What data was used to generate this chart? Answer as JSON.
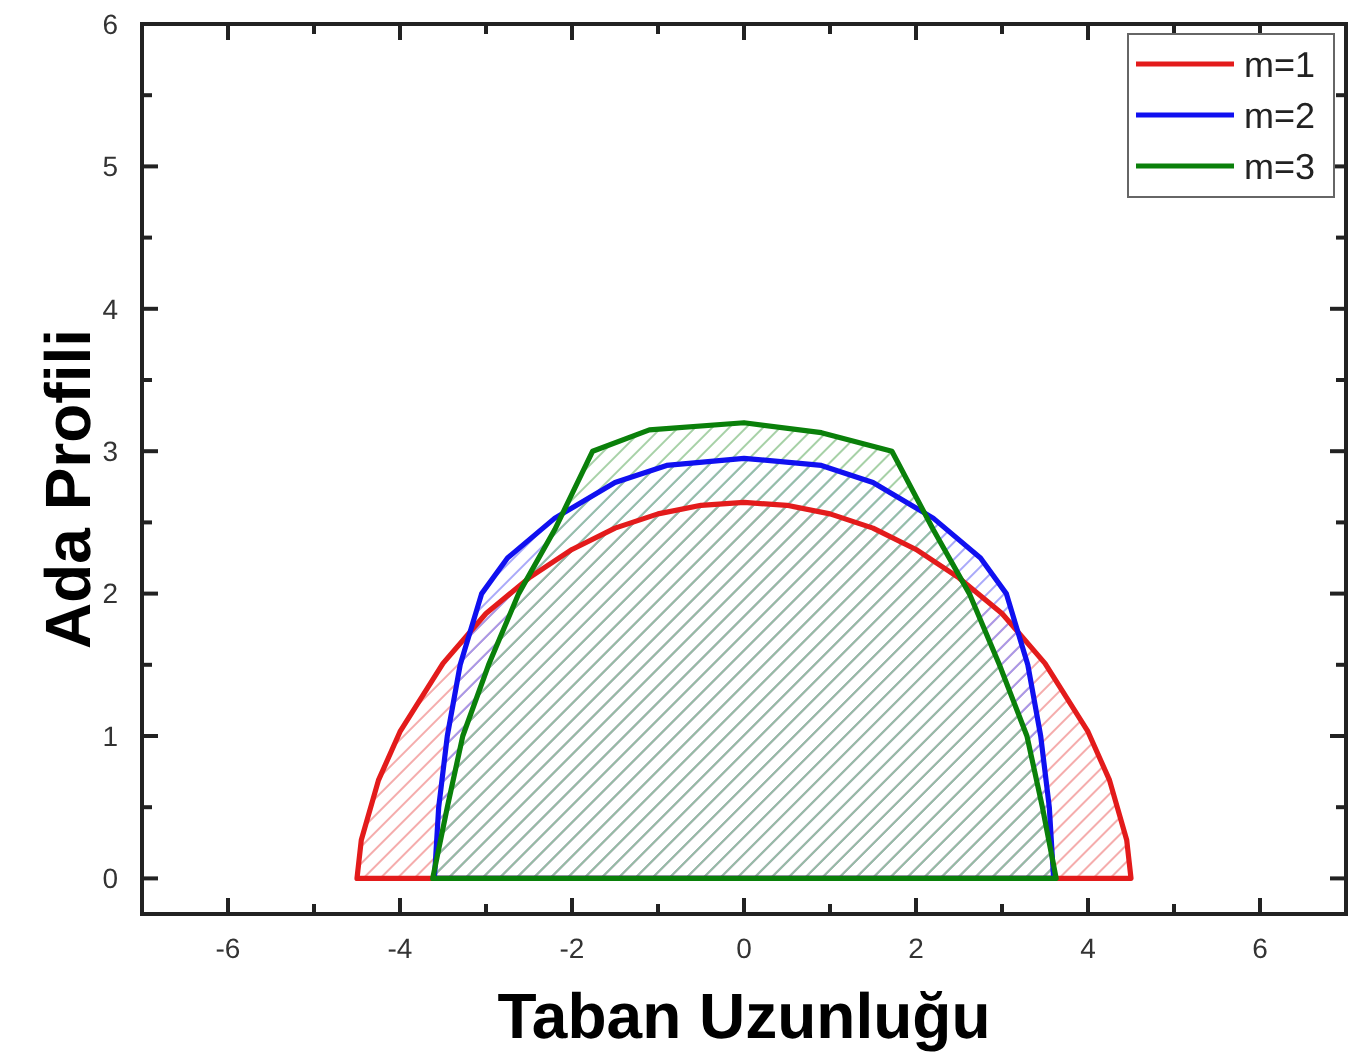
{
  "chart_data": {
    "type": "area",
    "xlabel": "Taban Uzunluğu",
    "ylabel": "Ada Profili",
    "xlim": [
      -7,
      7
    ],
    "ylim": [
      -0.25,
      6
    ],
    "xticks": [
      -6,
      {
        "value": -5,
        "label": null
      },
      -4,
      {
        "value": -3,
        "label": null
      },
      -2,
      {
        "value": -1,
        "label": null
      },
      0,
      {
        "value": 1,
        "label": null
      },
      2,
      {
        "value": 3,
        "label": null
      },
      4,
      {
        "value": 5,
        "label": null
      },
      6
    ],
    "yticks": [
      0,
      {
        "value": 0.5,
        "label": null
      },
      1,
      {
        "value": 1.5,
        "label": null
      },
      2,
      {
        "value": 2.5,
        "label": null
      },
      3,
      {
        "value": 3.5,
        "label": null
      },
      4,
      {
        "value": 4.5,
        "label": null
      },
      5,
      {
        "value": 5.5,
        "label": null
      },
      6
    ],
    "legend": "top right",
    "series": [
      {
        "name": "m=1",
        "color": "#e31b1b",
        "x": [
          -4.5,
          -4.45,
          -4.25,
          -4,
          -3.5,
          -3,
          -2.5,
          -2,
          -1.5,
          -1,
          -0.5,
          0,
          0.5,
          1,
          1.5,
          2,
          2.5,
          3,
          3.5,
          4,
          4.25,
          4.45,
          4.5
        ],
        "values": [
          0,
          0.27,
          0.69,
          1.03,
          1.51,
          1.86,
          2.11,
          2.31,
          2.46,
          2.56,
          2.62,
          2.64,
          2.62,
          2.56,
          2.46,
          2.31,
          2.11,
          1.86,
          1.51,
          1.03,
          0.69,
          0.27,
          0
        ]
      },
      {
        "name": "m=2",
        "color": "#1010f0",
        "x": [
          -3.6,
          -3.55,
          -3.45,
          -3.3,
          -3.05,
          -2.75,
          -2.2,
          -1.5,
          -0.9,
          0,
          0.9,
          1.5,
          2.2,
          2.75,
          3.05,
          3.3,
          3.45,
          3.55,
          3.6
        ],
        "values": [
          0,
          0.5,
          1,
          1.5,
          2,
          2.25,
          2.53,
          2.78,
          2.9,
          2.95,
          2.9,
          2.78,
          2.53,
          2.25,
          2,
          1.5,
          1,
          0.5,
          0
        ]
      },
      {
        "name": "m=3",
        "color": "#0a800a",
        "x": [
          -3.62,
          -3.45,
          -3.27,
          -2.97,
          -2.62,
          -2.2,
          -1.76,
          -1.1,
          0,
          0.9,
          1.72,
          2.2,
          2.62,
          2.97,
          3.29,
          3.47,
          3.63
        ],
        "values": [
          0,
          0.5,
          1,
          1.5,
          2,
          2.45,
          3.0,
          3.15,
          3.2,
          3.13,
          3.0,
          2.45,
          2,
          1.5,
          1,
          0.5,
          0
        ]
      }
    ]
  }
}
